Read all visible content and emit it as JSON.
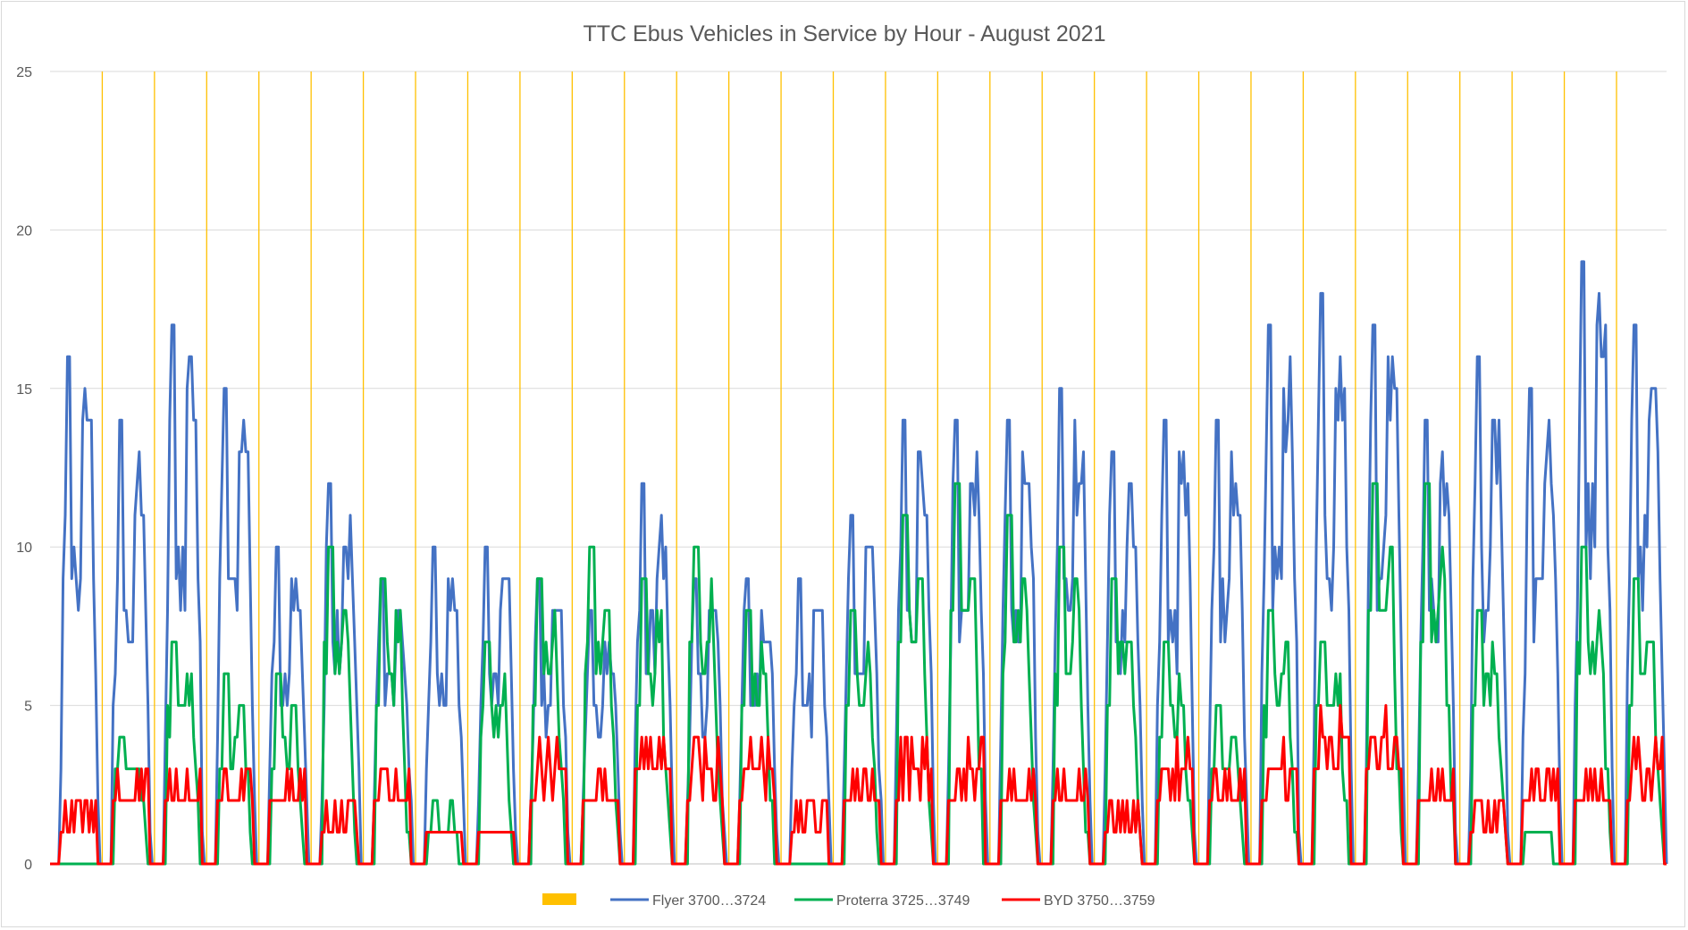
{
  "chart_data": {
    "type": "line",
    "title": "TTC Ebus Vehicles in Service by Hour - August 2021",
    "xlabel": "",
    "ylabel": "",
    "ylim": [
      0,
      25
    ],
    "yticks": [
      0,
      5,
      10,
      15,
      20,
      25
    ],
    "days": 31,
    "hours_per_day": 24,
    "grid": "horizontal",
    "legend_position": "bottom",
    "colors": {
      "day_marker": "#FFC000",
      "flyer": "#4472C4",
      "proterra": "#00B050",
      "byd": "#FF0000",
      "grid": "#d9d9d9",
      "axis": "#bfbfbf"
    },
    "legend": [
      {
        "label": "",
        "color": "#FFC000",
        "kind": "bar"
      },
      {
        "label": "Flyer 3700…3724",
        "color": "#4472C4",
        "kind": "line"
      },
      {
        "label": "Proterra 3725…3749",
        "color": "#00B050",
        "kind": "line"
      },
      {
        "label": "BYD 3750…3759",
        "color": "#FF0000",
        "kind": "line"
      }
    ],
    "series": [
      {
        "name": "Flyer 3700…3724",
        "key": "flyer",
        "daily_peak": [
          16,
          14,
          17,
          15,
          10,
          12,
          9,
          10,
          10,
          9,
          8,
          12,
          9,
          9,
          9,
          11,
          14,
          14,
          14,
          15,
          13,
          14,
          14,
          17,
          18,
          17,
          14,
          16,
          15,
          19,
          17
        ]
      },
      {
        "name": "Proterra 3725…3749",
        "key": "proterra",
        "daily_peak": [
          0,
          4,
          7,
          6,
          6,
          10,
          9,
          2,
          7,
          9,
          10,
          9,
          10,
          8,
          0,
          8,
          11,
          12,
          11,
          10,
          9,
          7,
          5,
          8,
          7,
          12,
          12,
          8,
          1,
          10,
          9
        ]
      },
      {
        "name": "BYD 3750…3759",
        "key": "byd",
        "daily_peak": [
          2,
          3,
          3,
          3,
          3,
          2,
          3,
          1,
          1,
          4,
          3,
          5,
          4,
          4,
          2,
          3,
          4,
          4,
          3,
          3,
          2,
          4,
          3,
          4,
          5,
          5,
          3,
          2,
          3,
          3,
          4
        ]
      }
    ]
  }
}
